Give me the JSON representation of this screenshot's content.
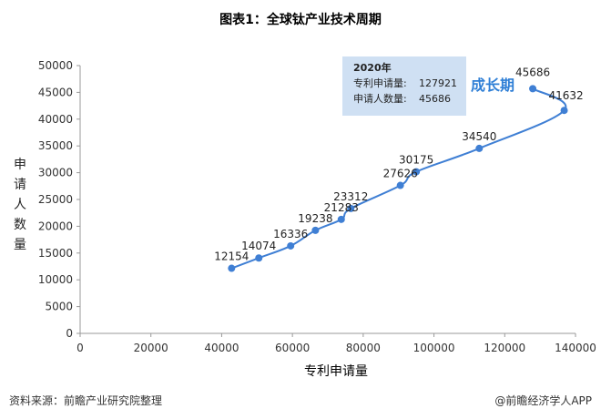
{
  "chart_data": {
    "type": "line",
    "title": "图表1：全球钛产业技术周期",
    "xlabel": "专利申请量",
    "ylabel": "申请人数量",
    "xlim": [
      0,
      140000
    ],
    "ylim": [
      0,
      50000
    ],
    "x_ticks": [
      "0",
      "20000",
      "40000",
      "60000",
      "80000",
      "100000",
      "120000",
      "140000"
    ],
    "y_ticks": [
      "0",
      "5000",
      "10000",
      "15000",
      "20000",
      "25000",
      "30000",
      "35000",
      "40000",
      "45000",
      "50000"
    ],
    "series": [
      {
        "color": "#3f7fd4",
        "points": [
          {
            "x": 42800,
            "y": 12154,
            "label": "12154"
          },
          {
            "x": 50500,
            "y": 14074,
            "label": "14074"
          },
          {
            "x": 59500,
            "y": 16336,
            "label": "16336"
          },
          {
            "x": 66500,
            "y": 19238,
            "label": "19238"
          },
          {
            "x": 73800,
            "y": 21283,
            "label": "21283"
          },
          {
            "x": 76500,
            "y": 23312,
            "label": "23312"
          },
          {
            "x": 90500,
            "y": 27626,
            "label": "27626"
          },
          {
            "x": 95000,
            "y": 30175,
            "label": "30175"
          },
          {
            "x": 112800,
            "y": 34540,
            "label": "34540"
          },
          {
            "x": 136800,
            "y": 41632,
            "label": "41632"
          },
          {
            "x": 127921,
            "y": 45686,
            "label": "45686"
          }
        ]
      }
    ],
    "annotation": {
      "year": "2020年",
      "line1_label": "专利申请量:",
      "line1_value": "127921",
      "line2_label": "申请人数量:",
      "line2_value": "45686",
      "phase": "成长期"
    },
    "grid": false
  },
  "footer": {
    "source": "资料来源：前瞻产业研究院整理",
    "credit": "@前瞻经济学人APP"
  },
  "colors": {
    "line": "#3f7fd4",
    "annotation_bg": "#cfe0f3",
    "phase_text": "#2f7fd6"
  }
}
